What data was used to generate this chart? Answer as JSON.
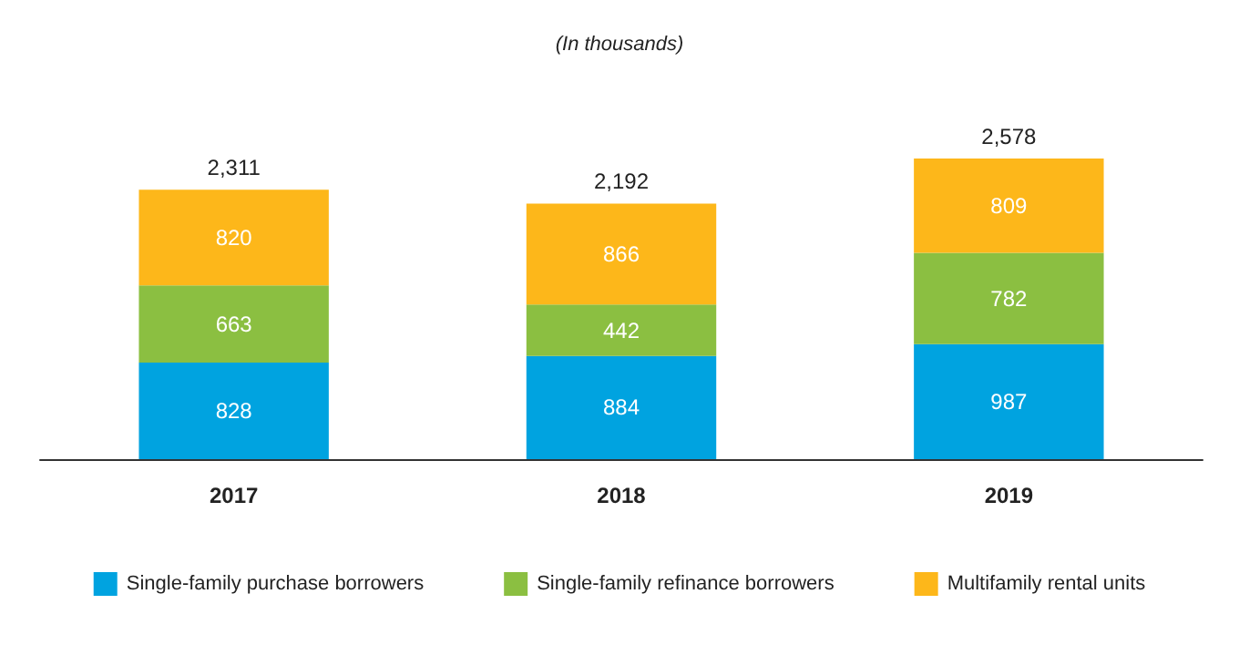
{
  "chart_data": {
    "type": "bar",
    "subtitle": "(In thousands)",
    "categories": [
      "2017",
      "2018",
      "2019"
    ],
    "stacked": true,
    "data_labels": true,
    "totals": [
      "2,311",
      "2,192",
      "2,578"
    ],
    "legend": "bottom",
    "series": [
      {
        "name": "Single-family purchase borrowers",
        "color": "#00a3e0",
        "values": [
          828,
          884,
          987
        ]
      },
      {
        "name": "Single-family refinance borrowers",
        "color": "#8bbf41",
        "values": [
          663,
          442,
          782
        ]
      },
      {
        "name": "Multifamily rental units",
        "color": "#fdb71a",
        "values": [
          820,
          866,
          809
        ]
      }
    ]
  }
}
